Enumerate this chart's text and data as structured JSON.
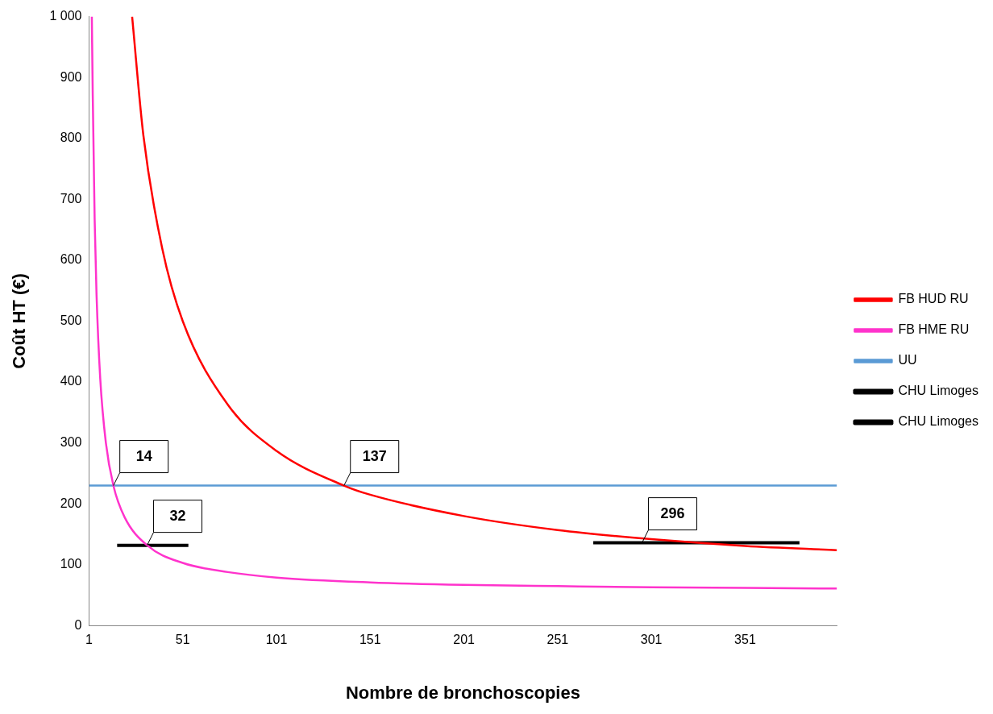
{
  "chart_data": {
    "type": "line",
    "xlabel": "Nombre de bronchoscopies",
    "ylabel": "Coût HT (€)",
    "xlim": [
      1,
      400
    ],
    "xticks": [
      1,
      51,
      101,
      151,
      201,
      251,
      301,
      351
    ],
    "ylim": [
      0,
      1000
    ],
    "yticks": [
      0,
      100,
      200,
      300,
      400,
      500,
      600,
      700,
      800,
      900,
      {
        "value": 1000,
        "label": "1 000"
      }
    ],
    "grid": false,
    "legend": "right",
    "marker": "none",
    "series": [
      {
        "name": "FB HUD RU",
        "color": "#ff0000",
        "x": [
          24,
          30,
          40,
          51,
          75,
          101,
          137,
          151,
          201,
          251,
          301,
          351,
          400
        ],
        "values": [
          1000,
          805,
          620,
          500,
          363,
          287,
          230,
          215,
          180,
          157,
          142,
          131,
          124
        ]
      },
      {
        "name": "FB HME RU",
        "color": "#ff33cc",
        "x": [
          2.5,
          3,
          4,
          5,
          7,
          10,
          14,
          20,
          32,
          51,
          75,
          101,
          151,
          201,
          251,
          301,
          351,
          400
        ],
        "values": [
          1000,
          870,
          668,
          545,
          405,
          300,
          230,
          178,
          132,
          103,
          88,
          79,
          71,
          67,
          65,
          63,
          62,
          61
        ]
      },
      {
        "name": "UU",
        "color": "#5b9bd5",
        "x": [
          1,
          400
        ],
        "values": [
          230,
          230
        ]
      },
      {
        "name": "CHU Limoges",
        "color": "#000000",
        "x": [
          16,
          54
        ],
        "values": [
          132,
          132
        ]
      },
      {
        "name": "CHU Limoges",
        "color": "#000000",
        "x": [
          270,
          380
        ],
        "values": [
          136,
          136
        ]
      }
    ],
    "annotations": [
      {
        "text": "137",
        "x": 137,
        "y": 230
      },
      {
        "text": "14",
        "x": 14,
        "y": 230
      },
      {
        "text": "32",
        "x": 32,
        "y": 132
      },
      {
        "text": "296",
        "x": 296,
        "y": 136
      }
    ]
  }
}
